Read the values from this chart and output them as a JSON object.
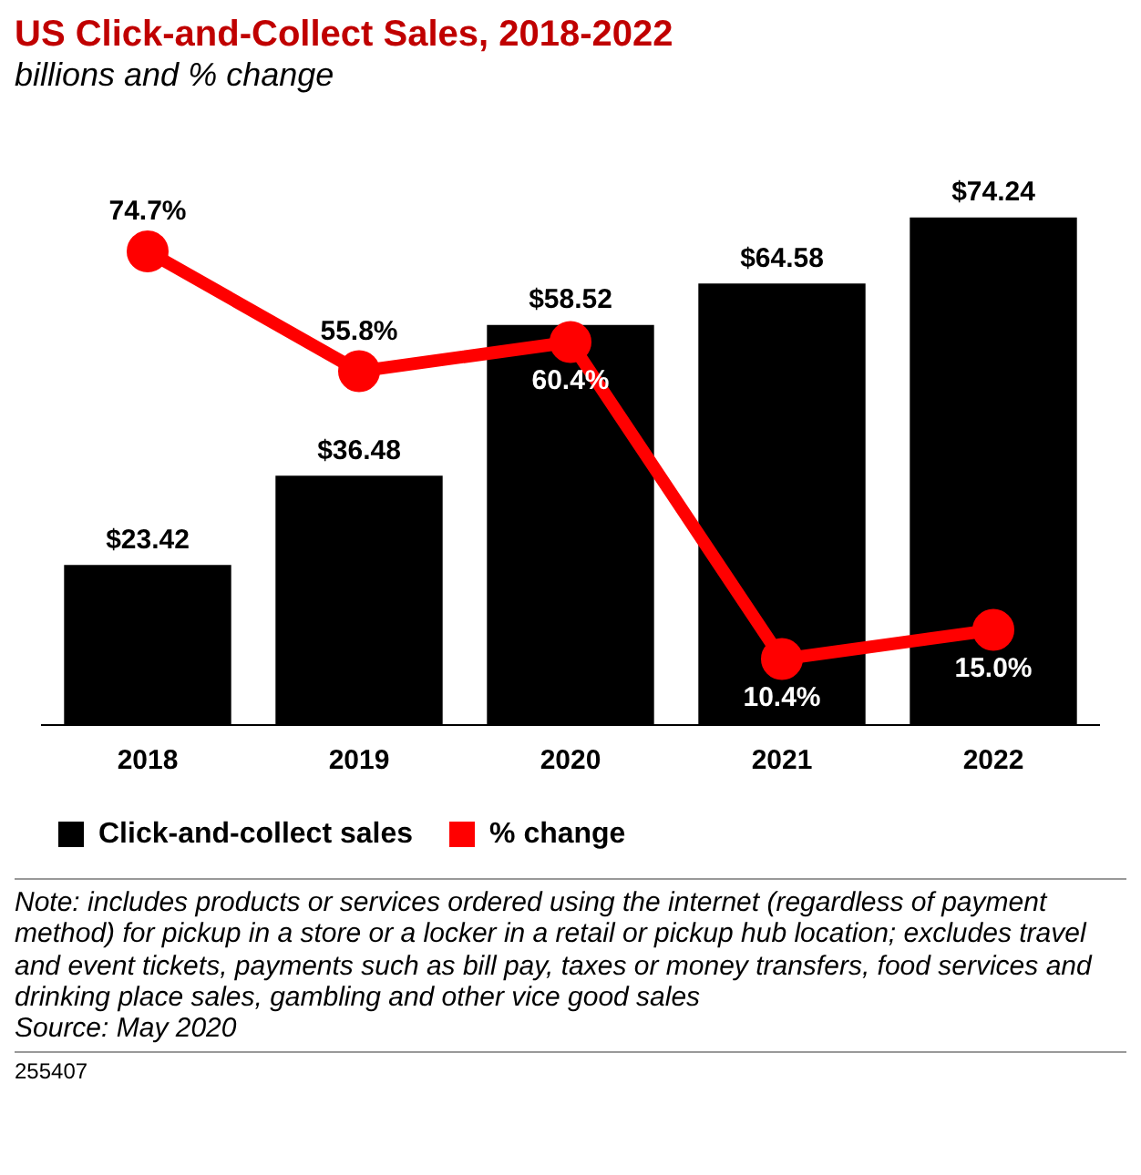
{
  "chart_data": {
    "type": "bar",
    "title": "US Click-and-Collect Sales, 2018-2022",
    "subtitle": "billions and % change",
    "categories": [
      "2018",
      "2019",
      "2020",
      "2021",
      "2022"
    ],
    "series": [
      {
        "name": "Click-and-collect sales",
        "color": "#000000",
        "values": [
          23.42,
          36.48,
          58.52,
          64.58,
          74.24
        ],
        "value_labels": [
          "$23.42",
          "$36.48",
          "$58.52",
          "$64.58",
          "$74.24"
        ]
      },
      {
        "name": "% change",
        "type": "line",
        "axis": "y2",
        "color": "#ff0000",
        "values": [
          74.7,
          55.8,
          60.4,
          10.4,
          15.0
        ],
        "value_labels": [
          "74.7%",
          "55.8%",
          "60.4%",
          "10.4%",
          "15.0%"
        ]
      }
    ],
    "legend": "bottom left",
    "marker": "circle",
    "annotations": [
      "Note: includes products or services ordered using the internet (regardless of payment method) for pickup in a store or a locker in a retail or pickup hub location; excludes travel and event tickets, payments such as bill pay, taxes or money transfers, food services and drinking place sales, gambling and other vice good sales",
      "Source: May 2020",
      "255407"
    ]
  }
}
